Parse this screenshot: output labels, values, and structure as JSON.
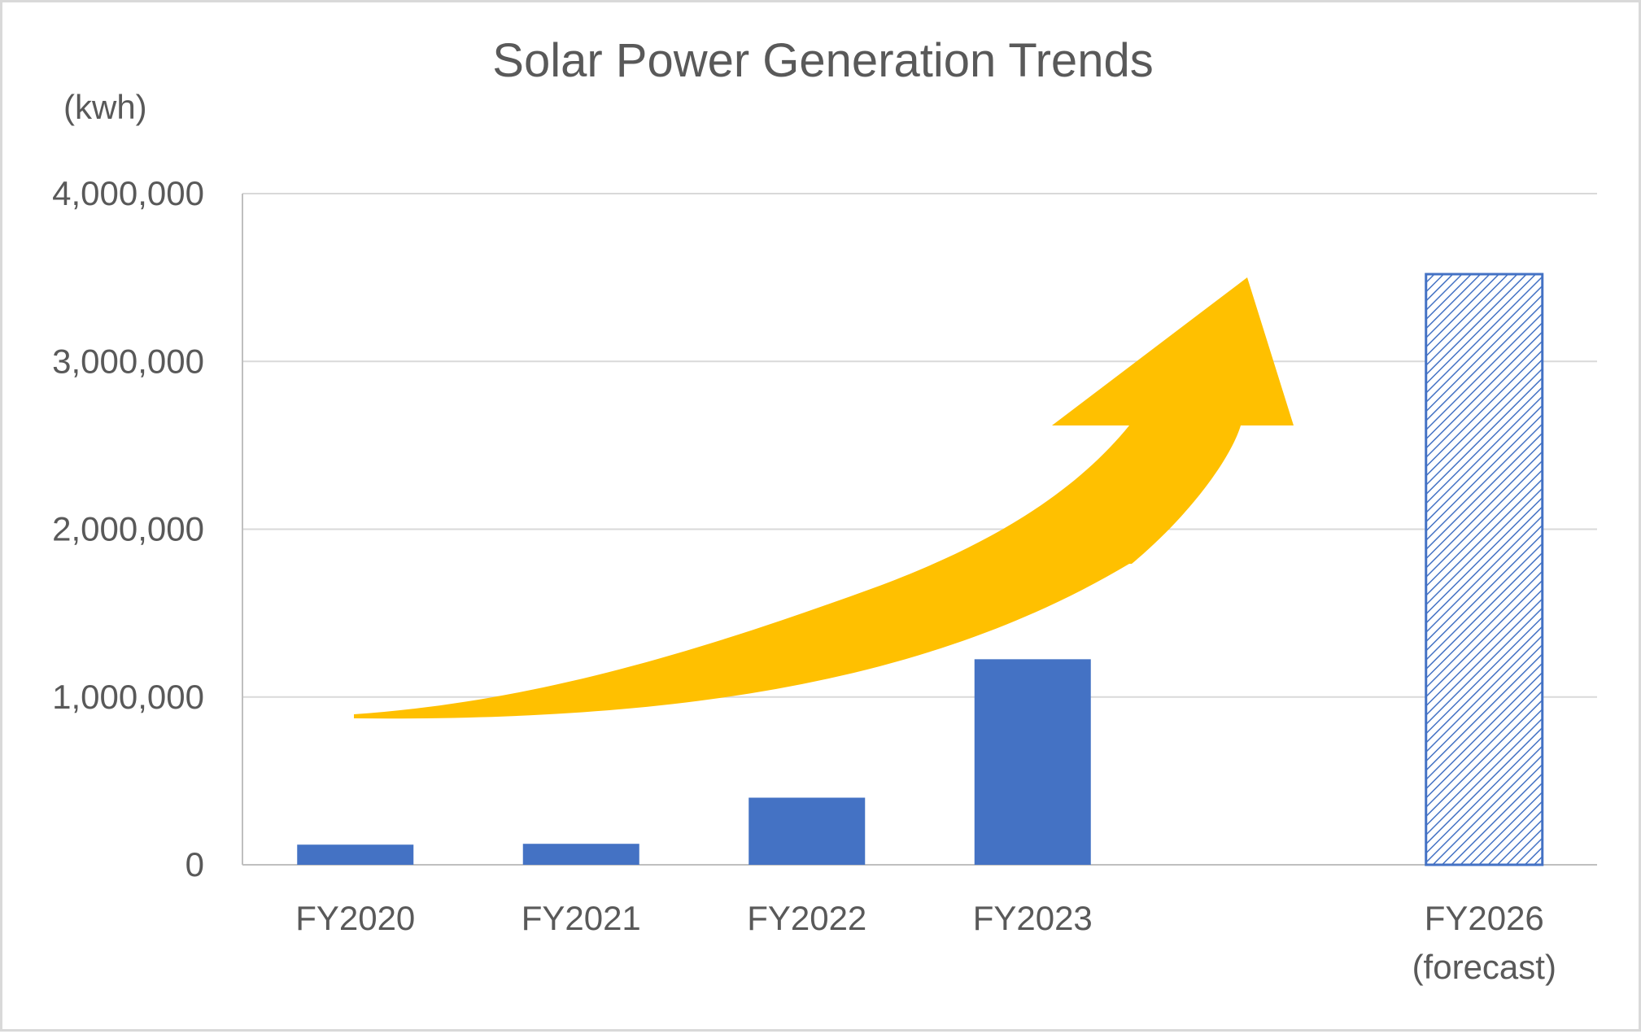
{
  "chart_data": {
    "type": "bar",
    "title": "Solar Power Generation Trends",
    "unit_label": "(kwh)",
    "categories": [
      "FY2020",
      "FY2021",
      "FY2022",
      "FY2023",
      "",
      "FY2026"
    ],
    "category_sublabels": [
      "",
      "",
      "",
      "",
      "",
      "(forecast)"
    ],
    "values": [
      120000,
      125000,
      400000,
      1225000,
      null,
      3520000
    ],
    "forecast": [
      false,
      false,
      false,
      false,
      false,
      true
    ],
    "ylim": [
      0,
      4000000
    ],
    "yticks": [
      0,
      1000000,
      2000000,
      3000000,
      4000000
    ],
    "ytick_labels": [
      "0",
      "1,000,000",
      "2,000,000",
      "3,000,000",
      "4,000,000"
    ],
    "grid": true,
    "colors": {
      "bar": "#4472C4",
      "arrow": "#FFC000",
      "grid": "#d9d9d9",
      "axis": "#bfbfbf"
    }
  }
}
